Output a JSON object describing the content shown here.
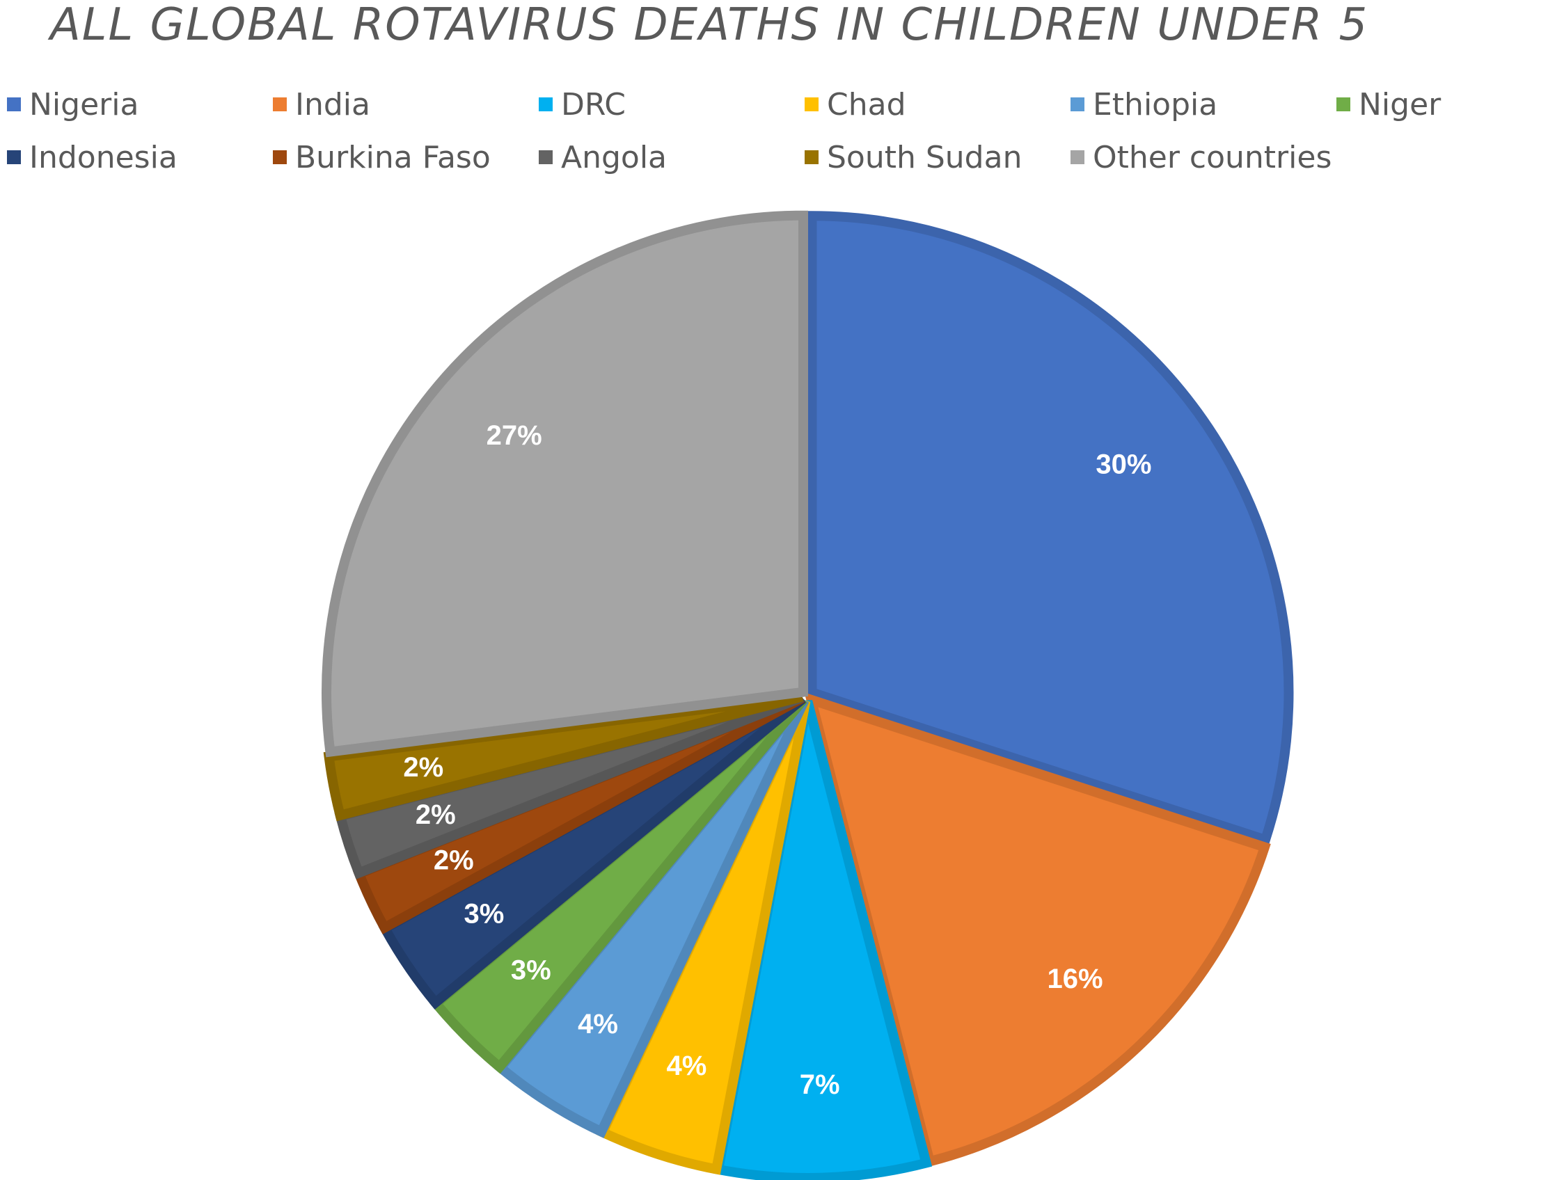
{
  "chart_data": {
    "type": "pie",
    "title": "ALL GLOBAL ROTAVIRUS DEATHS IN CHILDREN UNDER 5",
    "legend_position": "top",
    "slices": [
      {
        "label": "Nigeria",
        "value": 30,
        "display": "30%",
        "color": "#4472C4"
      },
      {
        "label": "India",
        "value": 16,
        "display": "16%",
        "color": "#ED7D31"
      },
      {
        "label": "DRC",
        "value": 7,
        "display": "7%",
        "color": "#00B0F0"
      },
      {
        "label": "Chad",
        "value": 4,
        "display": "4%",
        "color": "#FFC000"
      },
      {
        "label": "Ethiopia",
        "value": 4,
        "display": "4%",
        "color": "#5B9BD5"
      },
      {
        "label": "Niger",
        "value": 3,
        "display": "3%",
        "color": "#70AD47"
      },
      {
        "label": "Indonesia",
        "value": 3,
        "display": "3%",
        "color": "#264478"
      },
      {
        "label": "Burkina Faso",
        "value": 2,
        "display": "2%",
        "color": "#9E480E"
      },
      {
        "label": "Angola",
        "value": 2,
        "display": "2%",
        "color": "#636363"
      },
      {
        "label": "South Sudan",
        "value": 2,
        "display": "2%",
        "color": "#997300"
      },
      {
        "label": "Other countries",
        "value": 27,
        "display": "27%",
        "color": "#A5A5A5"
      }
    ]
  }
}
